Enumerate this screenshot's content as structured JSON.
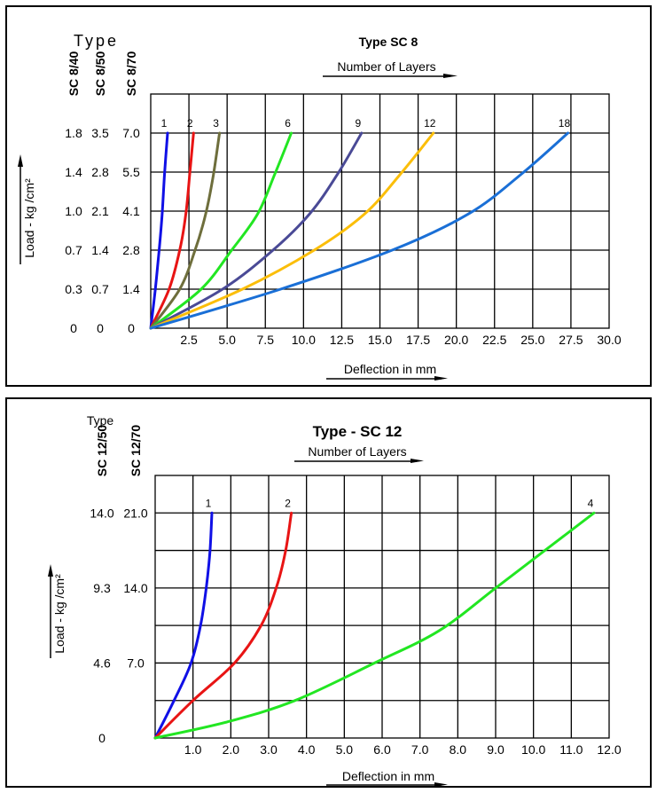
{
  "chart_data": [
    {
      "type": "line",
      "title": "Type SC 8",
      "subtitle": "Number of Layers",
      "type_header": "Type",
      "xlabel": "Deflection in mm",
      "ylabel": "Load - kg /cm²",
      "xlim": [
        0,
        30.0
      ],
      "x_ticks": [
        "2.5",
        "5.0",
        "7.5",
        "10.0",
        "12.5",
        "15.0",
        "17.5",
        "20.0",
        "22.5",
        "25.0",
        "27.5",
        "30.0"
      ],
      "grid": true,
      "y_columns": [
        {
          "name": "SC 8/40",
          "ticks": [
            "0",
            "0.3",
            "0.7",
            "1.0",
            "1.4",
            "1.8"
          ]
        },
        {
          "name": "SC 8/50",
          "ticks": [
            "0",
            "0.7",
            "1.4",
            "2.1",
            "2.8",
            "3.5"
          ]
        },
        {
          "name": "SC 8/70",
          "ticks": [
            "0",
            "1.4",
            "2.8",
            "4.1",
            "5.5",
            "7.0"
          ]
        }
      ],
      "ylim_sc8_70": [
        0,
        7.0
      ],
      "series": [
        {
          "name": "1",
          "color": "#1010e6",
          "points": [
            [
              0,
              0
            ],
            [
              0.3,
              1.4
            ],
            [
              0.55,
              2.8
            ],
            [
              0.75,
              4.1
            ],
            [
              0.9,
              5.5
            ],
            [
              1.1,
              7.0
            ]
          ]
        },
        {
          "name": "2",
          "color": "#e81414",
          "points": [
            [
              0,
              0
            ],
            [
              1.2,
              1.4
            ],
            [
              1.9,
              2.8
            ],
            [
              2.3,
              4.1
            ],
            [
              2.55,
              5.5
            ],
            [
              2.8,
              7.0
            ]
          ]
        },
        {
          "name": "3",
          "color": "#6e6e3c",
          "points": [
            [
              0,
              0
            ],
            [
              1.9,
              1.4
            ],
            [
              2.9,
              2.8
            ],
            [
              3.6,
              4.1
            ],
            [
              4.1,
              5.5
            ],
            [
              4.5,
              7.0
            ]
          ]
        },
        {
          "name": "6",
          "color": "#22e622",
          "points": [
            [
              0,
              0
            ],
            [
              3.3,
              1.4
            ],
            [
              5.3,
              2.8
            ],
            [
              7.0,
              4.1
            ],
            [
              8.1,
              5.5
            ],
            [
              9.2,
              7.0
            ]
          ]
        },
        {
          "name": "9",
          "color": "#4a4a96",
          "points": [
            [
              0,
              0
            ],
            [
              4.7,
              1.4
            ],
            [
              8.0,
              2.8
            ],
            [
              10.4,
              4.1
            ],
            [
              12.2,
              5.5
            ],
            [
              13.8,
              7.0
            ]
          ]
        },
        {
          "name": "12",
          "color": "#fbbe0a",
          "points": [
            [
              0,
              0
            ],
            [
              6.0,
              1.4
            ],
            [
              10.7,
              2.8
            ],
            [
              14.0,
              4.1
            ],
            [
              16.3,
              5.5
            ],
            [
              18.5,
              7.0
            ]
          ]
        },
        {
          "name": "18",
          "color": "#1a6fd6",
          "points": [
            [
              0,
              0
            ],
            [
              8.5,
              1.4
            ],
            [
              15.8,
              2.8
            ],
            [
              20.8,
              4.1
            ],
            [
              24.2,
              5.5
            ],
            [
              27.3,
              7.0
            ]
          ]
        }
      ]
    },
    {
      "type": "line",
      "title": "Type - SC 12",
      "subtitle": "Number of Layers",
      "type_header": "Type",
      "xlabel": "Deflection in mm",
      "ylabel": "Load - kg /cm²",
      "xlim": [
        0,
        12.0
      ],
      "x_ticks": [
        "1.0",
        "2.0",
        "3.0",
        "4.0",
        "5.0",
        "6.0",
        "7.0",
        "8.0",
        "9.0",
        "10.0",
        "11.0",
        "12.0"
      ],
      "grid": true,
      "y_columns": [
        {
          "name": "SC 12/50",
          "ticks": [
            "0",
            "4.6",
            "9.3",
            "14.0"
          ]
        },
        {
          "name": "SC 12/70",
          "ticks": [
            "7.0",
            "14.0",
            "21.0"
          ]
        }
      ],
      "ylim_sc12_70": [
        0,
        21.0
      ],
      "series": [
        {
          "name": "1",
          "color": "#1010e6",
          "points": [
            [
              0,
              0
            ],
            [
              0.5,
              3.5
            ],
            [
              0.95,
              7.0
            ],
            [
              1.2,
              10.5
            ],
            [
              1.35,
              14.0
            ],
            [
              1.45,
              17.5
            ],
            [
              1.5,
              21.0
            ]
          ]
        },
        {
          "name": "2",
          "color": "#e81414",
          "points": [
            [
              0,
              0
            ],
            [
              1.0,
              3.5
            ],
            [
              2.1,
              7.0
            ],
            [
              2.8,
              10.5
            ],
            [
              3.2,
              14.0
            ],
            [
              3.45,
              17.5
            ],
            [
              3.6,
              21.0
            ]
          ]
        },
        {
          "name": "4",
          "color": "#22e622",
          "points": [
            [
              0,
              0
            ],
            [
              1.9,
              1.5
            ],
            [
              3.7,
              3.5
            ],
            [
              5.8,
              7.0
            ],
            [
              7.5,
              10.0
            ],
            [
              9.0,
              14.0
            ],
            [
              10.3,
              17.5
            ],
            [
              11.6,
              21.0
            ]
          ]
        }
      ]
    }
  ]
}
